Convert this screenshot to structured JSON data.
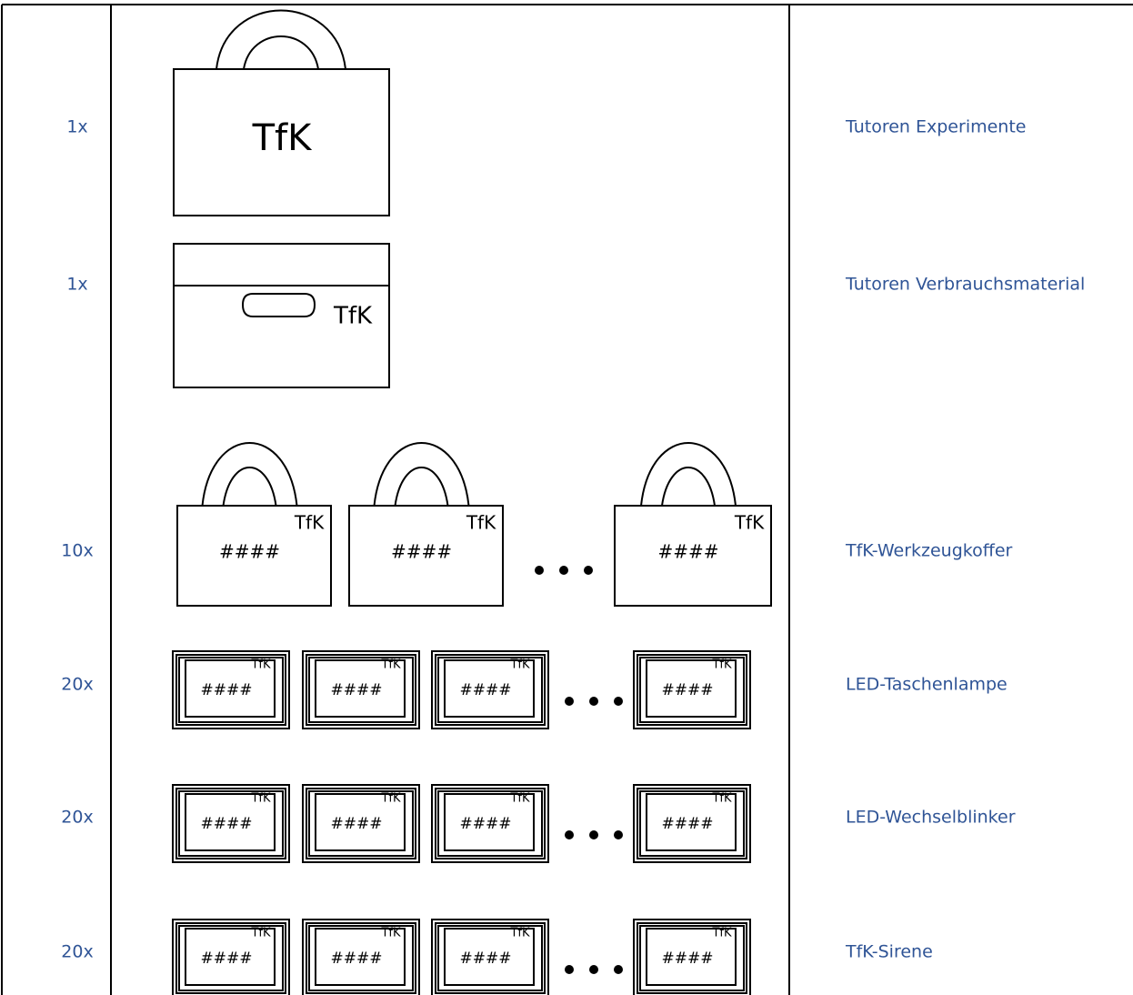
{
  "rows": [
    {
      "count": "1x",
      "label": "Tutoren Experimente",
      "brand": "TfK"
    },
    {
      "count": "1x",
      "label": "Tutoren Verbrauchsmaterial",
      "brand": "TfK"
    },
    {
      "count": "10x",
      "label": "TfK-Werkzeugkoffer",
      "brand": "TfK",
      "id": "####"
    },
    {
      "count": "20x",
      "label": "LED-Taschenlampe",
      "brand": "TfK",
      "id": "####"
    },
    {
      "count": "20x",
      "label": "LED-Wechselblinker",
      "brand": "TfK",
      "id": "####"
    },
    {
      "count": "20x",
      "label": "TfK-Sirene",
      "brand": "TfK",
      "id": "####"
    }
  ]
}
